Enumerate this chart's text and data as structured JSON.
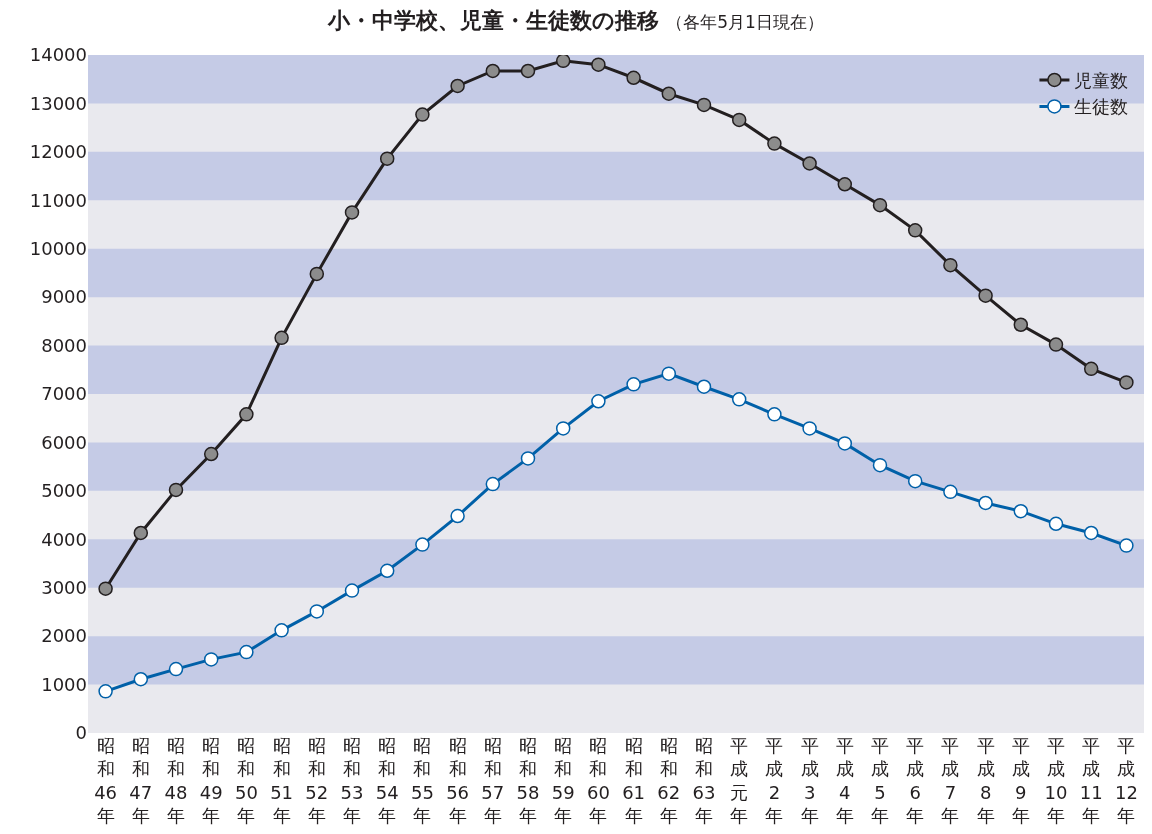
{
  "chart_data": {
    "type": "line",
    "title": "小・中学校、児童・生徒数の推移",
    "subtitle": "（各年5月1日現在）",
    "categories": [
      "昭和46年",
      "昭和47年",
      "昭和48年",
      "昭和49年",
      "昭和50年",
      "昭和51年",
      "昭和52年",
      "昭和53年",
      "昭和54年",
      "昭和55年",
      "昭和56年",
      "昭和57年",
      "昭和58年",
      "昭和59年",
      "昭和60年",
      "昭和61年",
      "昭和62年",
      "昭和63年",
      "平成元年",
      "平成2年",
      "平成3年",
      "平成4年",
      "平成5年",
      "平成6年",
      "平成7年",
      "平成8年",
      "平成9年",
      "平成10年",
      "平成11年",
      "平成12年"
    ],
    "series": [
      {
        "name": "児童数",
        "color": "#231f20",
        "values": [
          2980,
          4130,
          5020,
          5760,
          6580,
          8160,
          9480,
          10750,
          11860,
          12770,
          13360,
          13670,
          13670,
          13880,
          13800,
          13530,
          13200,
          12970,
          12660,
          12170,
          11760,
          11330,
          10900,
          10380,
          9660,
          9030,
          8430,
          8020,
          7520,
          7240
        ]
      },
      {
        "name": "生徒数",
        "color": "#0060a8",
        "values": [
          860,
          1110,
          1320,
          1520,
          1670,
          2120,
          2510,
          2940,
          3350,
          3890,
          4480,
          5140,
          5670,
          6290,
          6850,
          7200,
          7420,
          7150,
          6890,
          6580,
          6290,
          5980,
          5530,
          5200,
          4980,
          4750,
          4580,
          4320,
          4130,
          3870
        ]
      }
    ],
    "ylim": [
      0,
      14000
    ],
    "yticks": [
      0,
      1000,
      2000,
      3000,
      4000,
      5000,
      6000,
      7000,
      8000,
      9000,
      10000,
      11000,
      12000,
      13000,
      14000
    ],
    "bands": [
      {
        "axis": "y",
        "from": 1000,
        "to": 2000,
        "color": "#c5cbe6"
      },
      {
        "axis": "y",
        "from": 3000,
        "to": 4000,
        "color": "#c5cbe6"
      },
      {
        "axis": "y",
        "from": 5000,
        "to": 6000,
        "color": "#c5cbe6"
      },
      {
        "axis": "y",
        "from": 7000,
        "to": 8000,
        "color": "#c5cbe6"
      },
      {
        "axis": "y",
        "from": 9000,
        "to": 10000,
        "color": "#c5cbe6"
      },
      {
        "axis": "y",
        "from": 11000,
        "to": 12000,
        "color": "#c5cbe6"
      },
      {
        "axis": "y",
        "from": 13000,
        "to": 14000,
        "color": "#c5cbe6"
      }
    ],
    "grid": false,
    "legend": "top right",
    "marker": "circle",
    "line_style": "solid"
  }
}
